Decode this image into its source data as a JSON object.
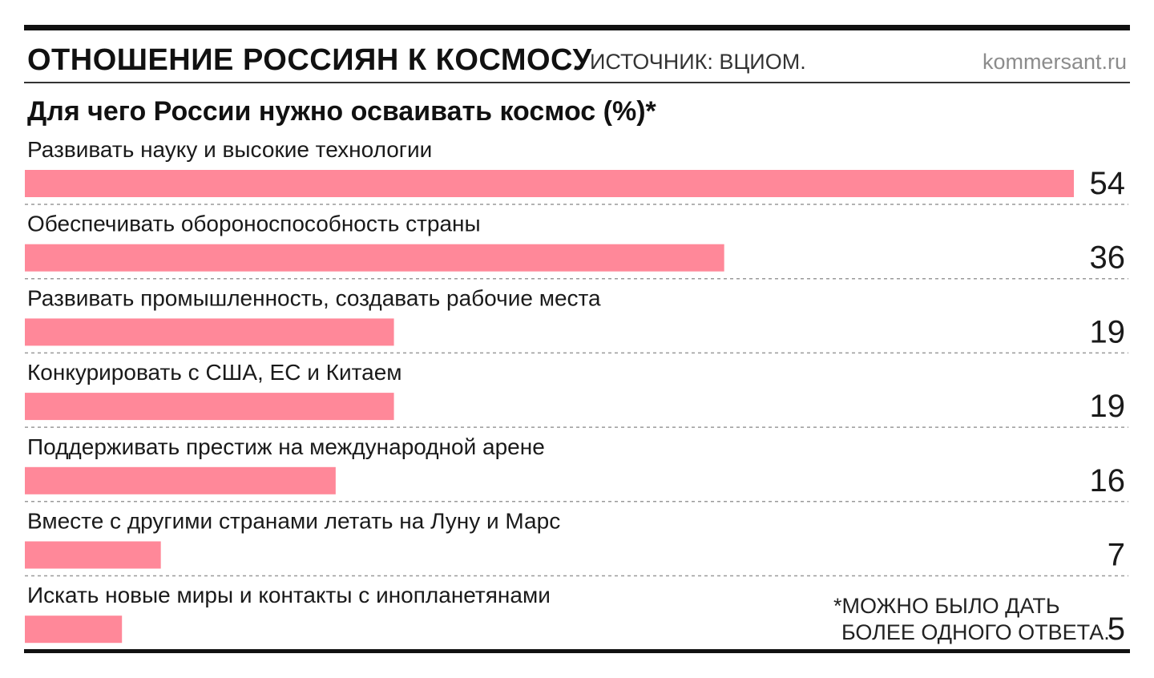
{
  "header": {
    "title": "ОТНОШЕНИЕ РОССИЯН К КОСМОСУ",
    "source": "ИСТОЧНИК: ВЦИОМ.",
    "brand": "kommersant.ru"
  },
  "footnote": {
    "line1": "*МОЖНО БЫЛО ДАТЬ",
    "line2": "БОЛЕЕ ОДНОГО ОТВЕТА."
  },
  "colors": {
    "bar": "#ff8899",
    "divider": "#9a9a9a",
    "rule": "#111111"
  },
  "chart_data": {
    "type": "bar",
    "orientation": "horizontal",
    "title": "Для чего России нужно осваивать космос (%)*",
    "categories": [
      "Развивать науку и высокие технологии",
      "Обеспечивать обороноспособность страны",
      "Развивать промышленность, создавать рабочие места",
      "Конкурировать с США, ЕС и Китаем",
      "Поддерживать престиж на международной арене",
      "Вместе с другими странами летать на Луну и Марс",
      "Искать новые миры и контакты с инопланетянами"
    ],
    "values": [
      54,
      36,
      19,
      19,
      16,
      7,
      5
    ],
    "xlim": [
      0,
      54
    ],
    "grid": false,
    "legend": "none",
    "data_labels": "right"
  }
}
